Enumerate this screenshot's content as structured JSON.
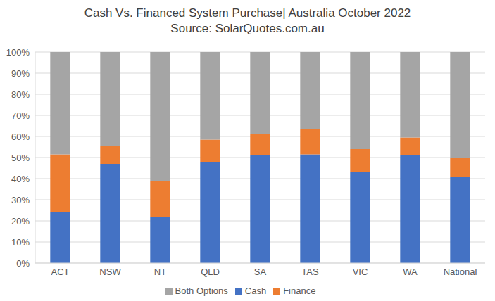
{
  "chart_data": {
    "type": "bar",
    "title": "Cash Vs. Financed System Purchase|  Australia October 2022",
    "subtitle": "Source: SolarQuotes.com.au",
    "categories": [
      "ACT",
      "NSW",
      "NT",
      "QLD",
      "SA",
      "TAS",
      "VIC",
      "WA",
      "National"
    ],
    "series": [
      {
        "name": "Cash",
        "color": "#4472c4",
        "values": [
          24,
          47,
          22,
          48,
          51,
          51.5,
          43,
          51,
          41
        ]
      },
      {
        "name": "Finance",
        "color": "#ed7d31",
        "values": [
          27.5,
          8.5,
          17,
          10.5,
          10,
          12,
          11,
          8.5,
          9
        ]
      },
      {
        "name": "Both Options",
        "color": "#a5a5a5",
        "values": [
          48.5,
          44.5,
          61,
          41.5,
          39,
          36.5,
          46,
          40.5,
          50
        ]
      }
    ],
    "ylim": [
      0,
      100
    ],
    "yticks": [
      {
        "value": 0,
        "label": "0%"
      },
      {
        "value": 10,
        "label": "10%"
      },
      {
        "value": 20,
        "label": "20%"
      },
      {
        "value": 30,
        "label": "30%"
      },
      {
        "value": 40,
        "label": "40%"
      },
      {
        "value": 50,
        "label": "50%"
      },
      {
        "value": 60,
        "label": "60%"
      },
      {
        "value": 70,
        "label": "70%"
      },
      {
        "value": 80,
        "label": "80%"
      },
      {
        "value": 90,
        "label": "90%"
      },
      {
        "value": 100,
        "label": "100%"
      }
    ],
    "stacked": true,
    "grid": true,
    "legend": "bottom"
  }
}
